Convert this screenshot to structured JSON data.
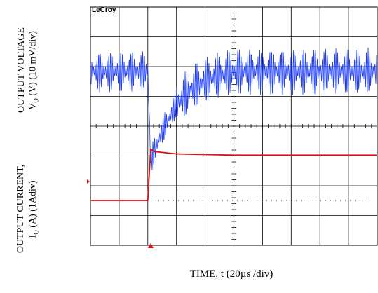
{
  "chart_data": {
    "type": "line",
    "brand": "LeCroy",
    "xlabel": "TIME, t (20µs /div)",
    "x_unit": "µs",
    "x_divisions": 10,
    "x_per_div": 20,
    "xlim": [
      0,
      200
    ],
    "grid": true,
    "panels": [
      {
        "name": "voltage",
        "ylabel_line1": "OUTPUT VOLTAGE",
        "ylabel_line2": "V",
        "ylabel_sub": "O",
        "ylabel_line2_rest": " (V) (10 mV/div)",
        "y_per_div": 10,
        "y_unit": "mV",
        "series": {
          "color": "#1f3fff",
          "baseline_mV": 0,
          "ripple_pp_mV": 14,
          "transient_start_us": 42,
          "min_mV": -30,
          "recovery_us": 80,
          "points": [
            {
              "t": 0,
              "v": 0
            },
            {
              "t": 40,
              "v": 0
            },
            {
              "t": 42,
              "v": -30
            },
            {
              "t": 50,
              "v": -20
            },
            {
              "t": 60,
              "v": -11
            },
            {
              "t": 70,
              "v": -6
            },
            {
              "t": 85,
              "v": -2
            },
            {
              "t": 100,
              "v": 0
            },
            {
              "t": 200,
              "v": 0
            }
          ]
        }
      },
      {
        "name": "current",
        "ylabel_line1": "OUTPUT CURRENT,",
        "ylabel_line2": "I",
        "ylabel_sub": "O",
        "ylabel_line2_rest": " (A)  (1Adiv)",
        "y_per_div": 1,
        "y_unit": "A",
        "series": {
          "color": "#dd1111",
          "points": [
            {
              "t": 0,
              "v": 0.0
            },
            {
              "t": 40,
              "v": 0.0
            },
            {
              "t": 42,
              "v": 2.2
            },
            {
              "t": 45,
              "v": 2.1
            },
            {
              "t": 60,
              "v": 2.0
            },
            {
              "t": 100,
              "v": 1.95
            },
            {
              "t": 200,
              "v": 1.95
            }
          ]
        }
      }
    ]
  }
}
